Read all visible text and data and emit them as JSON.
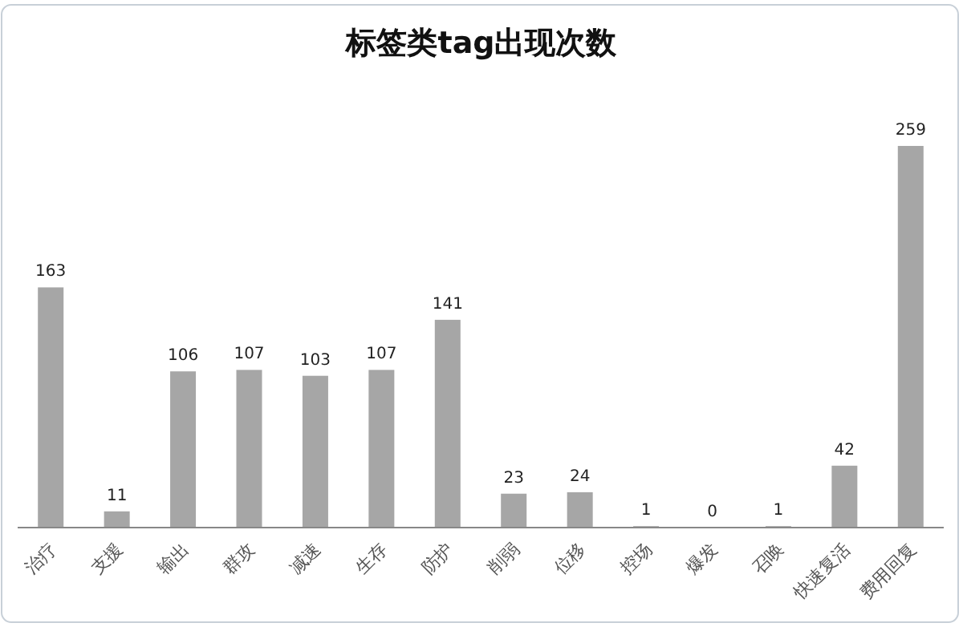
{
  "chart_data": {
    "type": "bar",
    "title": "标签类tag出现次数",
    "categories": [
      "治疗",
      "支援",
      "输出",
      "群攻",
      "减速",
      "生存",
      "防护",
      "削弱",
      "位移",
      "控场",
      "爆发",
      "召唤",
      "快速复活",
      "费用回复"
    ],
    "values": [
      163,
      11,
      106,
      107,
      103,
      107,
      141,
      23,
      24,
      1,
      0,
      1,
      42,
      259
    ],
    "color": "#a6a6a6",
    "data_labels": true
  }
}
